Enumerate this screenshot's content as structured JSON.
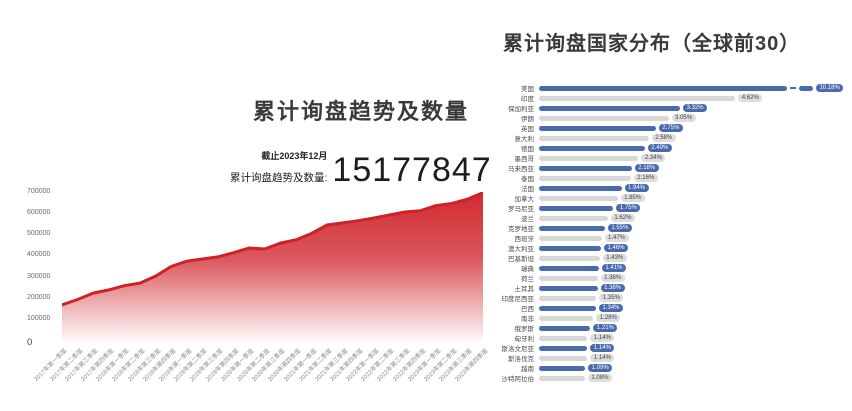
{
  "left_panel": {
    "title": "累计询盘趋势及数量",
    "stat_date": "截止2023年12月",
    "stat_label": "累计询盘趋势及数量:",
    "stat_value": "15177847"
  },
  "right_panel": {
    "title": "累计询盘国家分布（全球前30）"
  },
  "colors": {
    "area_red": "#cf2127",
    "bar_blue": "#4a6aae",
    "bar_gray": "#d8d8d8",
    "badge_gray_bg": "#dddddd",
    "badge_gray_text": "#444444",
    "badge_blue_text": "#ffffff",
    "title_text": "#3a3a3a"
  },
  "chart_data": [
    {
      "type": "area",
      "title": "累计询盘趋势及数量",
      "x": [
        "2017年第一季度",
        "2017年第二季度",
        "2017年第三季度",
        "2017年第四季度",
        "2018年第一季度",
        "2018年第二季度",
        "2018年第三季度",
        "2018年第四季度",
        "2019年第一季度",
        "2019年第二季度",
        "2019年第三季度",
        "2019年第四季度",
        "2020年第一季度",
        "2020年第二季度",
        "2020年第三季度",
        "2020年第四季度",
        "2021年第一季度",
        "2021年第二季度",
        "2021年第三季度",
        "2021年第四季度",
        "2022年第一季度",
        "2022年第二季度",
        "2022年第三季度",
        "2022年第四季度",
        "2023年第一季度",
        "2023年第二季度",
        "2023年第三季度",
        "2023年第四季度"
      ],
      "values": [
        170000,
        195000,
        225000,
        240000,
        260000,
        272000,
        305000,
        350000,
        375000,
        385000,
        395000,
        415000,
        437000,
        432000,
        460000,
        475000,
        505000,
        545000,
        555000,
        565000,
        578000,
        592000,
        606000,
        612000,
        636000,
        646000,
        666000,
        697000
      ],
      "ylim": [
        0,
        700000
      ],
      "yticks": [
        0,
        100000,
        200000,
        300000,
        400000,
        500000,
        600000,
        700000
      ],
      "grid": false,
      "legend": "none"
    },
    {
      "type": "bar",
      "orientation": "horizontal",
      "title": "累计询盘国家分布（全球前30）",
      "categories": [
        "美国",
        "印度",
        "保加利亚",
        "伊朗",
        "英国",
        "意大利",
        "德国",
        "墨西哥",
        "马来西亚",
        "泰国",
        "法国",
        "加拿大",
        "罗马尼亚",
        "波兰",
        "克罗地亚",
        "西班牙",
        "澳大利亚",
        "巴基斯坦",
        "瑞典",
        "荷兰",
        "土耳其",
        "印度尼西亚",
        "巴西",
        "南非",
        "俄罗斯",
        "匈牙利",
        "斯洛文尼亚",
        "斯洛伐克",
        "越南",
        "沙特阿拉伯"
      ],
      "values": [
        10.18,
        4.62,
        3.32,
        3.05,
        2.75,
        2.58,
        2.49,
        2.34,
        2.18,
        2.16,
        1.94,
        1.85,
        1.75,
        1.62,
        1.55,
        1.47,
        1.46,
        1.43,
        1.41,
        1.38,
        1.38,
        1.35,
        1.34,
        1.28,
        1.21,
        1.14,
        1.14,
        1.14,
        1.09,
        1.08
      ],
      "value_labels": [
        "10.18%",
        "4.62%",
        "3.32%",
        "3.05%",
        "2.75%",
        "2.58%",
        "2.49%",
        "2.34%",
        "2.18%",
        "2.16%",
        "1.94%",
        "1.85%",
        "1.75%",
        "1.62%",
        "1.55%",
        "1.47%",
        "1.46%",
        "1.43%",
        "1.41%",
        "1.38%",
        "1.38%",
        "1.35%",
        "1.34%",
        "1.28%",
        "1.21%",
        "1.14%",
        "1.14%",
        "1.14%",
        "1.09%",
        "1.08%"
      ],
      "bar_colors_alternate": [
        "#4a6aae",
        "#d8d8d8"
      ],
      "truncated_first_bar": true,
      "xlim": [
        0,
        4.7
      ]
    }
  ]
}
